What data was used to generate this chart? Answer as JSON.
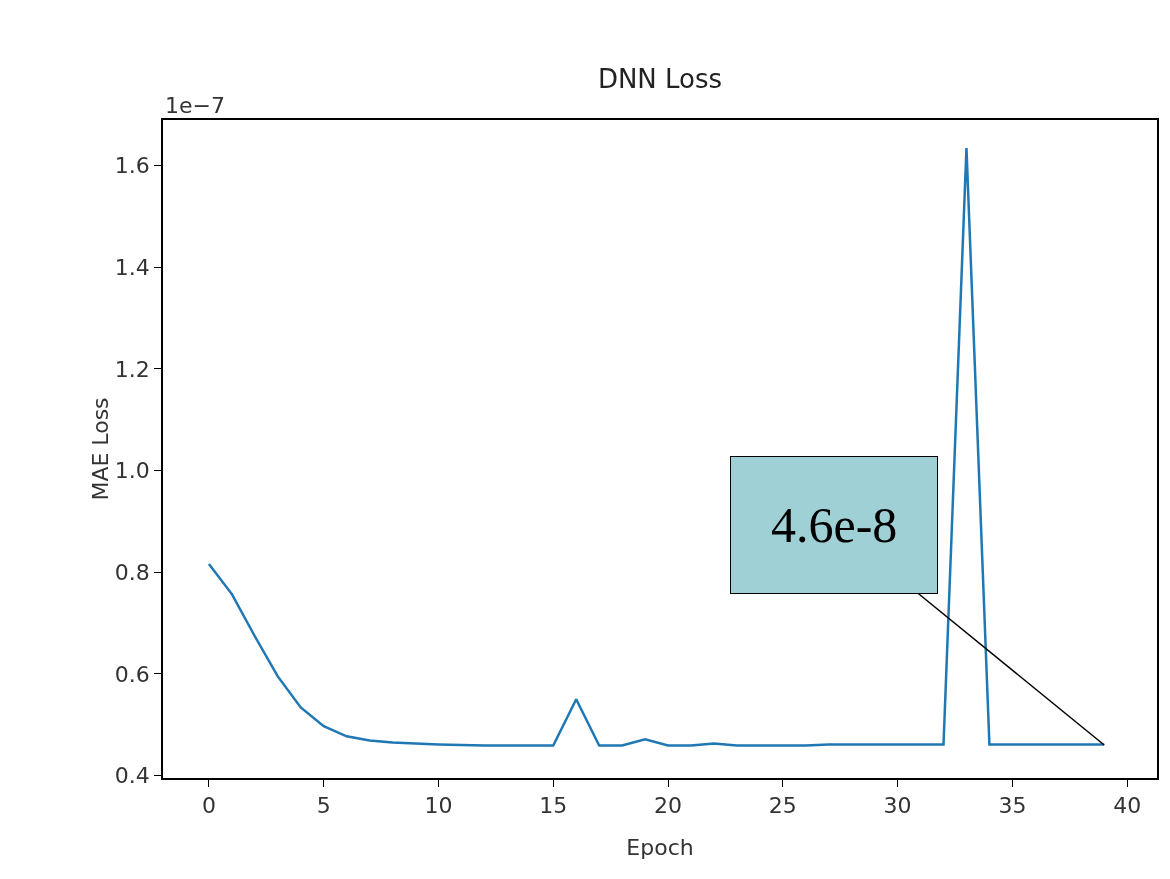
{
  "chart_data": {
    "type": "line",
    "title": "DNN Loss",
    "xlabel": "Epoch",
    "ylabel": "MAE Loss",
    "x": [
      0,
      1,
      2,
      3,
      4,
      5,
      6,
      7,
      8,
      9,
      10,
      11,
      12,
      13,
      14,
      15,
      16,
      17,
      18,
      19,
      20,
      21,
      22,
      23,
      24,
      25,
      26,
      27,
      28,
      29,
      30,
      31,
      32,
      33,
      34,
      35,
      36,
      37,
      38,
      39
    ],
    "series": [
      {
        "color": "#1f77b4",
        "values": [
          0.816,
          0.757,
          0.674,
          0.595,
          0.534,
          0.497,
          0.477,
          0.469,
          0.465,
          0.463,
          0.461,
          0.46,
          0.459,
          0.459,
          0.459,
          0.459,
          0.55,
          0.459,
          0.459,
          0.471,
          0.459,
          0.459,
          0.463,
          0.459,
          0.459,
          0.459,
          0.459,
          0.461,
          0.461,
          0.461,
          0.461,
          0.461,
          0.461,
          1.635,
          0.461,
          0.461,
          0.461,
          0.461,
          0.461,
          0.461
        ]
      }
    ],
    "xlim": [
      -2,
      41.3
    ],
    "xticks": [
      0,
      5,
      10,
      15,
      20,
      25,
      30,
      35,
      40
    ],
    "ylim": [
      0.395,
      1.69
    ],
    "yticks": [
      {
        "value": 0.4,
        "label": "0.4"
      },
      {
        "value": 0.6,
        "label": "0.6"
      },
      {
        "value": 0.8,
        "label": "0.8"
      },
      {
        "value": 1.0,
        "label": "1.0"
      },
      {
        "value": 1.2,
        "label": "1.2"
      },
      {
        "value": 1.4,
        "label": "1.4"
      },
      {
        "value": 1.6,
        "label": "1.6"
      }
    ],
    "grid": false,
    "marker": "none",
    "line_style": "solid",
    "annotations": [
      "1e−7",
      {
        "text": "4.6e-8",
        "x": 39,
        "y": 0.46
      }
    ]
  }
}
